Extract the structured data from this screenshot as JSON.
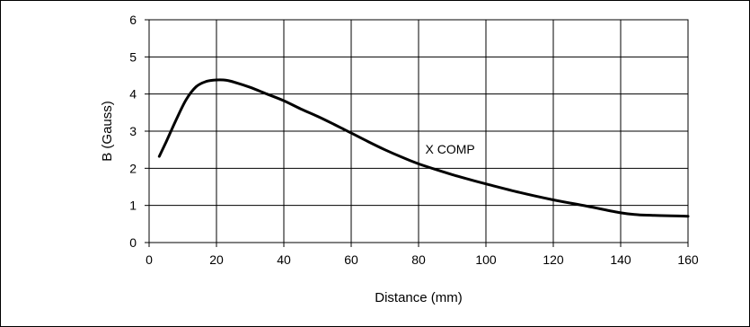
{
  "chart_data": {
    "type": "line",
    "title": "",
    "xlabel": "Distance (mm)",
    "ylabel": "B (Gauss)",
    "xlim": [
      0,
      160
    ],
    "ylim": [
      0,
      6
    ],
    "xticks": [
      0,
      20,
      40,
      60,
      80,
      100,
      120,
      140,
      160
    ],
    "yticks": [
      0,
      1,
      2,
      3,
      4,
      5,
      6
    ],
    "grid": true,
    "legend": "none",
    "annotations": [
      {
        "text": "X COMP",
        "x": 82,
        "y": 2.4
      }
    ],
    "series": [
      {
        "x": [
          3,
          5,
          8,
          11,
          14,
          17,
          20,
          23,
          26,
          30,
          35,
          40,
          45,
          50,
          55,
          60,
          65,
          70,
          75,
          80,
          85,
          90,
          95,
          100,
          110,
          120,
          130,
          140,
          145,
          150,
          155,
          160
        ],
        "y": [
          2.32,
          2.7,
          3.3,
          3.85,
          4.2,
          4.34,
          4.38,
          4.37,
          4.3,
          4.18,
          4.0,
          3.82,
          3.6,
          3.4,
          3.18,
          2.95,
          2.72,
          2.5,
          2.3,
          2.12,
          1.97,
          1.83,
          1.7,
          1.58,
          1.35,
          1.15,
          0.98,
          0.8,
          0.75,
          0.73,
          0.72,
          0.71
        ]
      }
    ]
  }
}
